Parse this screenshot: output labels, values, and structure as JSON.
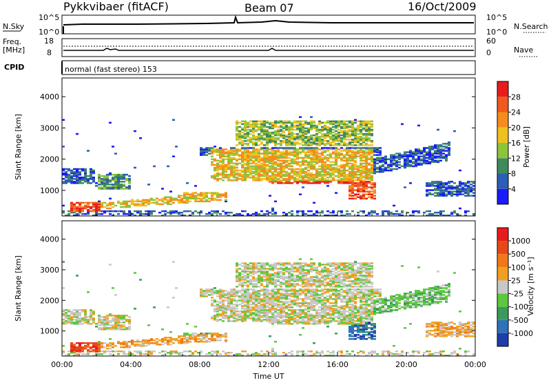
{
  "header": {
    "station": "Pykkvibaer (fitACF)",
    "beam": "Beam 07",
    "date": "16/Oct/2009"
  },
  "sky_panel": {
    "left_label": "N.Sky",
    "right_label": "N.Search",
    "left_ticks": [
      "10^5",
      "10^0"
    ],
    "right_ticks": [
      "10^5",
      "10^0"
    ]
  },
  "freq_panel": {
    "left_label_line1": "Freq.",
    "left_label_line2": "[MHz]",
    "right_label": "Nave",
    "left_ticks": [
      "18",
      "8"
    ],
    "right_ticks": [
      "60",
      "0"
    ]
  },
  "cpid": {
    "label": "CPID",
    "text": "normal (fast stereo) 153"
  },
  "chart_data": [
    {
      "type": "heatmap",
      "title": "",
      "xlabel": "",
      "ylabel": "Slant Range [km]",
      "y_ticks": [
        "1000",
        "2000",
        "3000",
        "4000"
      ],
      "ylim": [
        180,
        4600
      ],
      "colorbar": {
        "label": "Power [dB]",
        "ticks": [
          "4",
          "8",
          "12",
          "16",
          "20",
          "24",
          "28"
        ],
        "colors": [
          "#1a1aff",
          "#2d5db5",
          "#3f8a5b",
          "#8cc43c",
          "#f0c020",
          "#f58c1e",
          "#f05a1e",
          "#e81c1c"
        ]
      }
    },
    {
      "type": "heatmap",
      "title": "",
      "xlabel": "Time UT",
      "ylabel": "Slant Range [km]",
      "y_ticks": [
        "1000",
        "2000",
        "3000",
        "4000"
      ],
      "x_ticks": [
        "00:00",
        "04:00",
        "08:00",
        "12:00",
        "16:00",
        "20:00",
        "00:00"
      ],
      "ylim": [
        180,
        4600
      ],
      "colorbar": {
        "label": "Velocity [m s⁻¹]",
        "ticks": [
          "1000",
          "500",
          "100",
          "25",
          "-25",
          "-100",
          "-500",
          "-1000"
        ],
        "colors": [
          "#1e3caa",
          "#2e72b8",
          "#3a9a5c",
          "#5cc83c",
          "#c8c8c8",
          "#f0a020",
          "#f07818",
          "#e84818",
          "#e81c1c"
        ]
      }
    }
  ]
}
